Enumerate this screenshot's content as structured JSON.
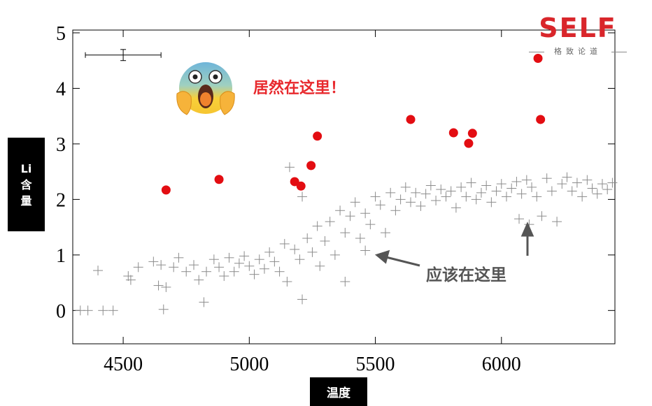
{
  "chart_data": {
    "type": "scatter",
    "xlabel": "温度",
    "ylabel": [
      "Li",
      "含",
      "量"
    ],
    "xlim": [
      4300,
      6450
    ],
    "ylim": [
      -0.6,
      5.05
    ],
    "xticks": [
      4500,
      5000,
      5500,
      6000
    ],
    "yticks": [
      0,
      1,
      2,
      3,
      4,
      5
    ],
    "grid": false,
    "series": [
      {
        "marker": "filled-circle",
        "color": "#e30d12",
        "points": [
          [
            4670,
            2.17
          ],
          [
            4880,
            2.36
          ],
          [
            5180,
            2.32
          ],
          [
            5205,
            2.24
          ],
          [
            5245,
            2.61
          ],
          [
            5270,
            3.14
          ],
          [
            5640,
            3.44
          ],
          [
            5810,
            3.2
          ],
          [
            5870,
            3.01
          ],
          [
            5885,
            3.19
          ],
          [
            6145,
            4.54
          ],
          [
            6155,
            3.44
          ]
        ]
      },
      {
        "marker": "plus",
        "color": "#8c8c8c",
        "points": [
          [
            4330,
            0.0
          ],
          [
            4360,
            0.0
          ],
          [
            4420,
            0.0
          ],
          [
            4460,
            0.0
          ],
          [
            4400,
            0.72
          ],
          [
            4520,
            0.62
          ],
          [
            4530,
            0.55
          ],
          [
            4560,
            0.78
          ],
          [
            4620,
            0.88
          ],
          [
            4650,
            0.82
          ],
          [
            4640,
            0.45
          ],
          [
            4670,
            0.42
          ],
          [
            4660,
            0.02
          ],
          [
            4700,
            0.78
          ],
          [
            4720,
            0.95
          ],
          [
            4750,
            0.7
          ],
          [
            4780,
            0.82
          ],
          [
            4800,
            0.55
          ],
          [
            4820,
            0.15
          ],
          [
            4830,
            0.7
          ],
          [
            4860,
            0.92
          ],
          [
            4880,
            0.78
          ],
          [
            4900,
            0.62
          ],
          [
            4920,
            0.95
          ],
          [
            4940,
            0.7
          ],
          [
            4960,
            0.85
          ],
          [
            4980,
            0.98
          ],
          [
            5000,
            0.8
          ],
          [
            5020,
            0.65
          ],
          [
            5040,
            0.92
          ],
          [
            5060,
            0.75
          ],
          [
            5080,
            1.05
          ],
          [
            5100,
            0.88
          ],
          [
            5120,
            0.7
          ],
          [
            5140,
            1.2
          ],
          [
            5150,
            0.52
          ],
          [
            5160,
            2.58
          ],
          [
            5180,
            1.1
          ],
          [
            5200,
            0.92
          ],
          [
            5210,
            0.2
          ],
          [
            5210,
            2.05
          ],
          [
            5230,
            1.3
          ],
          [
            5250,
            1.05
          ],
          [
            5270,
            1.52
          ],
          [
            5280,
            0.8
          ],
          [
            5300,
            1.25
          ],
          [
            5320,
            1.6
          ],
          [
            5340,
            1.0
          ],
          [
            5360,
            1.8
          ],
          [
            5380,
            0.52
          ],
          [
            5380,
            1.4
          ],
          [
            5400,
            1.7
          ],
          [
            5420,
            1.95
          ],
          [
            5440,
            1.3
          ],
          [
            5460,
            1.08
          ],
          [
            5460,
            1.75
          ],
          [
            5480,
            1.55
          ],
          [
            5500,
            2.05
          ],
          [
            5520,
            1.9
          ],
          [
            5540,
            1.4
          ],
          [
            5560,
            2.12
          ],
          [
            5580,
            1.8
          ],
          [
            5600,
            2.0
          ],
          [
            5620,
            2.22
          ],
          [
            5640,
            1.95
          ],
          [
            5660,
            2.12
          ],
          [
            5680,
            1.88
          ],
          [
            5700,
            2.1
          ],
          [
            5720,
            2.25
          ],
          [
            5740,
            1.98
          ],
          [
            5760,
            2.18
          ],
          [
            5780,
            2.05
          ],
          [
            5800,
            2.15
          ],
          [
            5820,
            1.85
          ],
          [
            5840,
            2.22
          ],
          [
            5860,
            2.05
          ],
          [
            5880,
            2.3
          ],
          [
            5900,
            2.0
          ],
          [
            5920,
            2.12
          ],
          [
            5940,
            2.25
          ],
          [
            5960,
            1.95
          ],
          [
            5980,
            2.15
          ],
          [
            6000,
            2.28
          ],
          [
            6020,
            2.05
          ],
          [
            6040,
            2.2
          ],
          [
            6060,
            2.32
          ],
          [
            6070,
            1.65
          ],
          [
            6080,
            2.1
          ],
          [
            6100,
            2.35
          ],
          [
            6110,
            1.55
          ],
          [
            6120,
            2.22
          ],
          [
            6140,
            2.05
          ],
          [
            6160,
            1.7
          ],
          [
            6180,
            2.38
          ],
          [
            6200,
            2.15
          ],
          [
            6220,
            1.6
          ],
          [
            6240,
            2.28
          ],
          [
            6260,
            2.4
          ],
          [
            6280,
            2.15
          ],
          [
            6300,
            2.3
          ],
          [
            6320,
            2.05
          ],
          [
            6340,
            2.35
          ],
          [
            6360,
            2.2
          ],
          [
            6380,
            2.1
          ],
          [
            6400,
            2.28
          ],
          [
            6420,
            2.18
          ],
          [
            6440,
            2.3
          ]
        ]
      }
    ],
    "error_bar": {
      "x": 4500,
      "xerr_low": 4350,
      "xerr_high": 4650,
      "y": 4.6,
      "yerr": 0.1
    }
  },
  "annotations": {
    "surprise": "居然在这里！",
    "expected": "应该在这里"
  },
  "logo": {
    "main": "SELF",
    "sub": "格致论道"
  },
  "emoji": {
    "icon": "screaming-face-icon"
  }
}
